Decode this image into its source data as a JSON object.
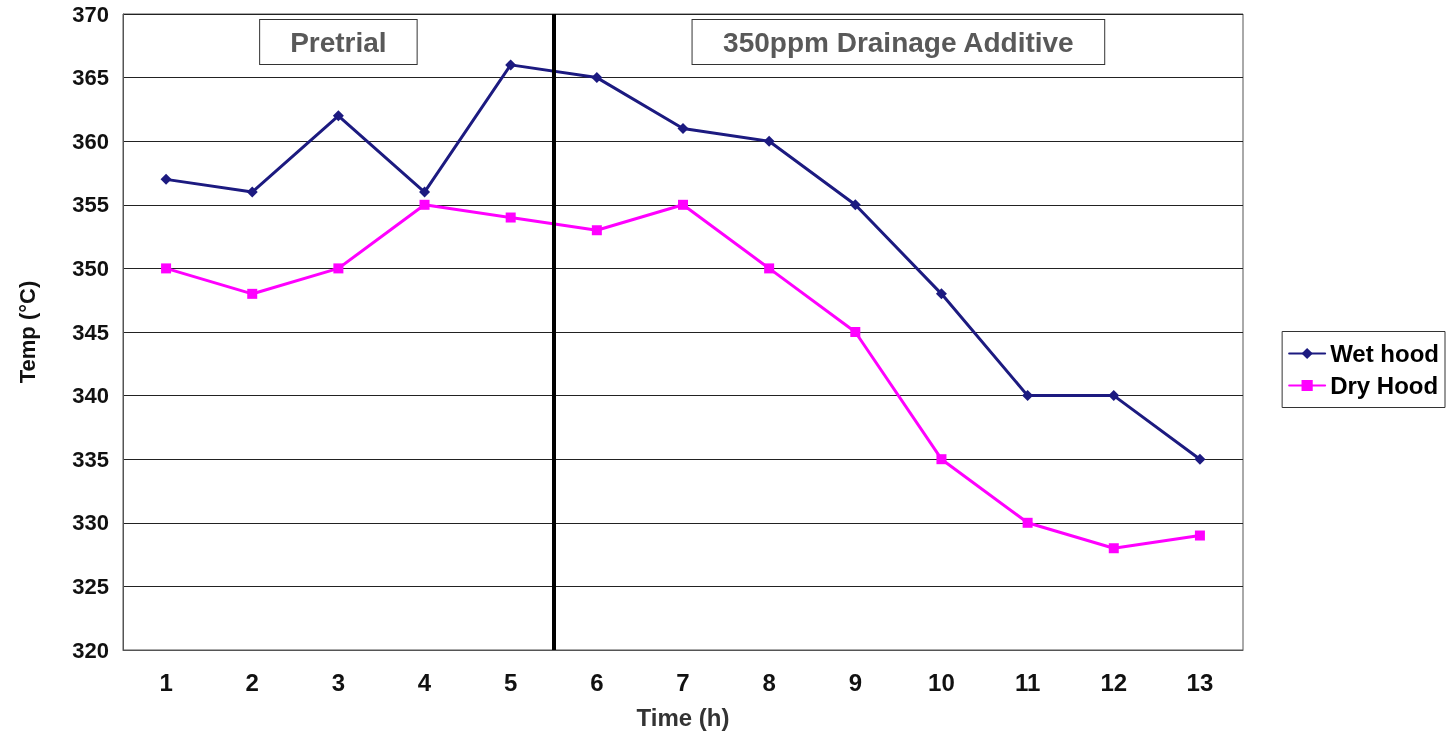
{
  "chart_data": {
    "type": "line",
    "xlabel": "Time (h)",
    "ylabel": "Temp (°C)",
    "x": [
      1,
      2,
      3,
      4,
      5,
      6,
      7,
      8,
      9,
      10,
      11,
      12,
      13
    ],
    "xlim": [
      0.5,
      13.5
    ],
    "xticks": [
      1,
      2,
      3,
      4,
      5,
      6,
      7,
      8,
      9,
      10,
      11,
      12,
      13
    ],
    "ylim": [
      320,
      370
    ],
    "yticks": [
      320,
      325,
      330,
      335,
      340,
      345,
      350,
      355,
      360,
      365,
      370
    ],
    "series": [
      {
        "name": "Wet hood",
        "color": "#1c1a80",
        "marker": "diamond",
        "values": [
          357,
          356,
          362,
          356,
          366,
          365,
          361,
          360,
          355,
          348,
          340,
          340,
          335
        ]
      },
      {
        "name": "Dry Hood",
        "color": "#ff00ff",
        "marker": "square",
        "values": [
          350,
          348,
          350,
          355,
          354,
          353,
          355,
          350,
          345,
          335,
          330,
          328,
          329
        ]
      }
    ],
    "ref_lines": [
      {
        "axis": "x",
        "value": 5.5,
        "color": "#000000"
      }
    ],
    "annotations": [
      "Pretrial",
      "350ppm Drainage Additive"
    ],
    "grid": "y",
    "legend": "right",
    "line_style": "solid"
  }
}
